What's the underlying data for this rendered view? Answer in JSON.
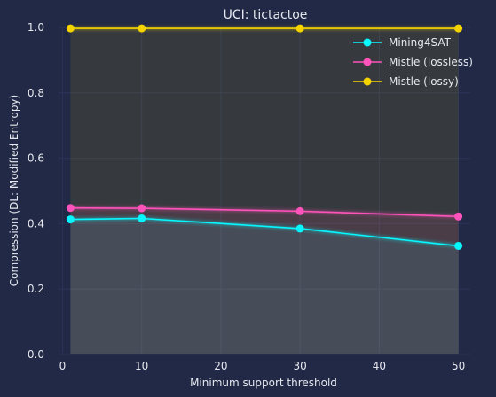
{
  "chart_data": {
    "type": "line",
    "title": "UCI: tictactoe",
    "xlabel": "Minimum support threshold",
    "ylabel": "Compression (DL: Modified Entropy)",
    "xlim": [
      -0.5,
      51.5
    ],
    "ylim": [
      0.0,
      1.0
    ],
    "xticks": [
      0,
      10,
      20,
      30,
      40,
      50
    ],
    "yticks": [
      0.0,
      0.2,
      0.4,
      0.6,
      0.8,
      1.0
    ],
    "grid": true,
    "legend_position": "top-right",
    "series": [
      {
        "name": "Mining4SAT",
        "color": "#08F7FE",
        "x": [
          1,
          10,
          30,
          50
        ],
        "y": [
          0.413,
          0.416,
          0.385,
          0.332
        ]
      },
      {
        "name": "Mistle (lossless)",
        "color": "#FE53BB",
        "x": [
          1,
          10,
          30,
          50
        ],
        "y": [
          0.448,
          0.447,
          0.438,
          0.422
        ]
      },
      {
        "name": "Mistle (lossy)",
        "color": "#F5D300",
        "x": [
          1,
          10,
          30,
          50
        ],
        "y": [
          0.997,
          0.997,
          0.997,
          0.997
        ]
      }
    ]
  },
  "colors": {
    "background": "#212946",
    "grid": "#2A3459",
    "text": "#E6E8EE"
  }
}
